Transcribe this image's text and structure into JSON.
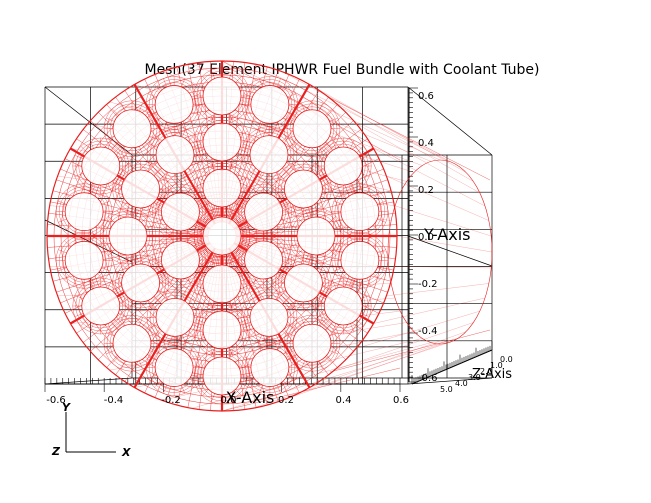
{
  "title": "Mesh(37 Element IPHWR Fuel Bundle with Coolant Tube)",
  "axes": {
    "x": {
      "label": "X-Axis",
      "ticks": [
        "-0.6",
        "-0.4",
        "-0.2",
        "0.0",
        "0.2",
        "0.4",
        "0.6"
      ]
    },
    "y": {
      "label": "Y-Axis",
      "ticks": [
        "0.6",
        "0.4",
        "0.2",
        "0.0",
        "-0.2",
        "-0.4",
        "-0.6"
      ]
    },
    "z": {
      "label": "Z-Axis",
      "ticks": [
        "0.0",
        "1.0",
        "2.0",
        "3.0",
        "4.0",
        "5.0"
      ]
    }
  },
  "triad": {
    "x": "X",
    "y": "Y",
    "z": "Z"
  },
  "colors": {
    "mesh": "#e82020",
    "frame": "#000000",
    "background": "#ffffff"
  }
}
